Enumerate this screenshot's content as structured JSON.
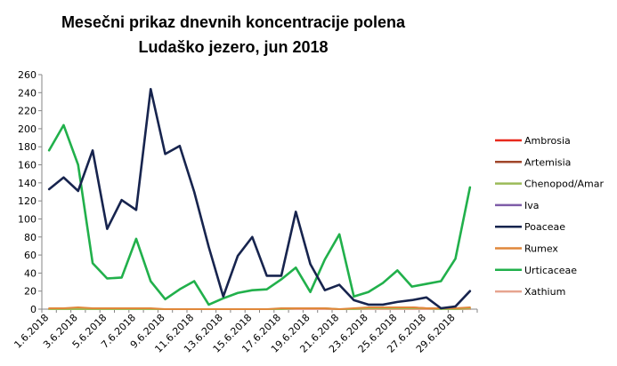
{
  "chart_data": {
    "type": "line",
    "title": "Mesečni prikaz dnevnih koncentracije polena",
    "subtitle": "Ludaško jezero, jun 2018",
    "xlabel": "",
    "ylabel": "",
    "ylim": [
      0,
      260
    ],
    "yticks": [
      0,
      20,
      40,
      60,
      80,
      100,
      120,
      140,
      160,
      180,
      200,
      220,
      240,
      260
    ],
    "grid": false,
    "legend_position": "right",
    "x": [
      "1.6.2018",
      "2.6.2018",
      "3.6.2018",
      "4.6.2018",
      "5.6.2018",
      "6.6.2018",
      "7.6.2018",
      "8.6.2018",
      "9.6.2018",
      "10.6.2018",
      "11.6.2018",
      "12.6.2018",
      "13.6.2018",
      "14.6.2018",
      "15.6.2018",
      "16.6.2018",
      "17.6.2018",
      "18.6.2018",
      "19.6.2018",
      "20.6.2018",
      "21.6.2018",
      "22.6.2018",
      "23.6.2018",
      "24.6.2018",
      "25.6.2018",
      "26.6.2018",
      "27.6.2018",
      "28.6.2018",
      "29.6.2018",
      "30.6.2018"
    ],
    "x_tick_labels": [
      "1.6.2018",
      "3.6.2018",
      "5.6.2018",
      "7.6.2018",
      "9.6.2018",
      "11.6.2018",
      "13.6.2018",
      "15.6.2018",
      "17.6.2018",
      "19.6.2018",
      "21.6.2018",
      "23.6.2018",
      "25.6.2018",
      "27.6.2018",
      "29.6.2018"
    ],
    "series": [
      {
        "name": "Ambrosia",
        "color": "#e8291c",
        "values": [
          0,
          0,
          0,
          0,
          0,
          0,
          0,
          0,
          0,
          0,
          0,
          0,
          0,
          0,
          0,
          0,
          0,
          0,
          0,
          0,
          0,
          0,
          0,
          0,
          1,
          2,
          1,
          0,
          0,
          1
        ]
      },
      {
        "name": "Artemisia",
        "color": "#a0462a",
        "values": [
          0,
          0,
          0,
          0,
          0,
          0,
          0,
          0,
          0,
          0,
          0,
          0,
          0,
          0,
          0,
          0,
          0,
          0,
          0,
          0,
          0,
          0,
          0,
          0,
          0,
          0,
          0,
          0,
          0,
          0
        ]
      },
      {
        "name": "Chenopod/Amar",
        "color": "#9bbb59",
        "values": [
          0,
          0,
          0,
          0,
          0,
          0,
          0,
          0,
          0,
          0,
          0,
          0,
          0,
          0,
          0,
          0,
          0,
          1,
          1,
          1,
          0,
          0,
          1,
          1,
          1,
          1,
          1,
          0,
          0,
          1
        ]
      },
      {
        "name": "Iva",
        "color": "#7e5ca8",
        "values": [
          0,
          0,
          0,
          0,
          0,
          0,
          0,
          0,
          0,
          0,
          0,
          0,
          0,
          0,
          0,
          0,
          0,
          0,
          0,
          0,
          0,
          0,
          0,
          0,
          0,
          0,
          0,
          0,
          0,
          0
        ]
      },
      {
        "name": "Poaceae",
        "color": "#17244e",
        "values": [
          133,
          146,
          131,
          176,
          89,
          121,
          110,
          244,
          172,
          181,
          130,
          69,
          14,
          59,
          80,
          37,
          37,
          108,
          50,
          21,
          27,
          10,
          5,
          5,
          8,
          10,
          13,
          1,
          3,
          20
        ]
      },
      {
        "name": "Rumex",
        "color": "#e0873a",
        "values": [
          1,
          1,
          2,
          1,
          1,
          1,
          1,
          1,
          0,
          0,
          0,
          0,
          0,
          0,
          0,
          0,
          1,
          1,
          1,
          1,
          0,
          1,
          2,
          2,
          2,
          2,
          1,
          1,
          1,
          2
        ]
      },
      {
        "name": "Urticaceae",
        "color": "#21b04b",
        "values": [
          176,
          204,
          160,
          51,
          34,
          35,
          78,
          31,
          11,
          22,
          31,
          5,
          12,
          18,
          21,
          22,
          33,
          46,
          19,
          55,
          83,
          14,
          19,
          29,
          43,
          25,
          28,
          31,
          56,
          135
        ]
      },
      {
        "name": "Xathium",
        "color": "#e6a48f",
        "values": [
          0,
          0,
          0,
          0,
          0,
          0,
          0,
          0,
          0,
          0,
          0,
          0,
          0,
          0,
          0,
          0,
          0,
          0,
          0,
          0,
          0,
          0,
          0,
          0,
          0,
          0,
          0,
          0,
          0,
          0
        ]
      }
    ]
  }
}
